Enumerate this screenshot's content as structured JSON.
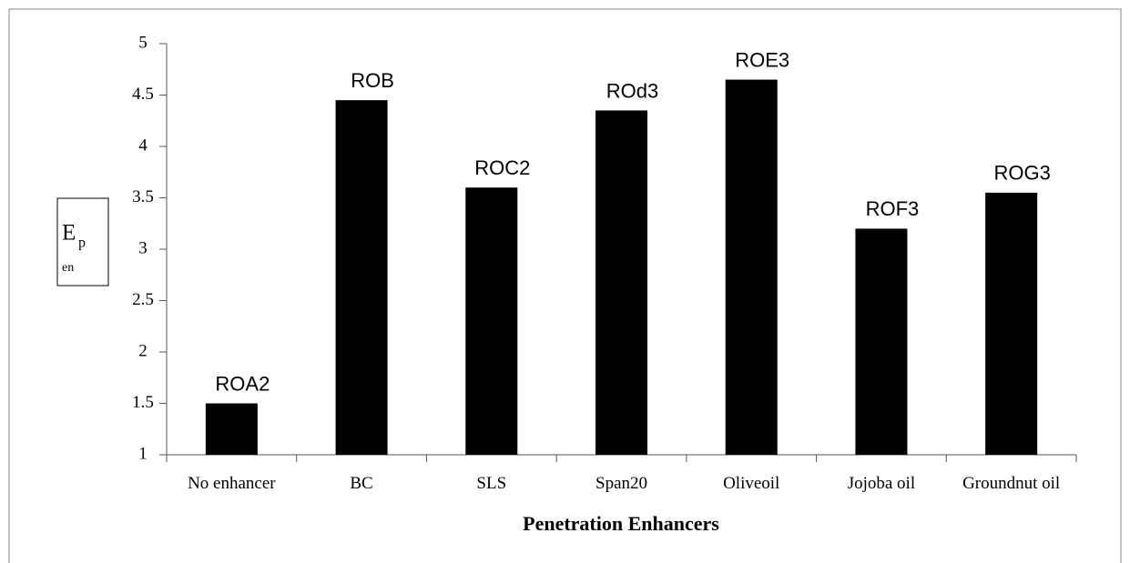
{
  "chart_data": {
    "type": "bar",
    "categories": [
      "No enhancer",
      "BC",
      "SLS",
      "Span20",
      "Oliveoil",
      "Jojoba oil",
      "Groundnut oil"
    ],
    "values": [
      1.5,
      4.45,
      3.6,
      4.35,
      4.65,
      3.2,
      3.55
    ],
    "bar_labels": [
      "ROA2",
      "ROB",
      "ROC2",
      "ROd3",
      "ROE3",
      "ROF3",
      "ROG3"
    ],
    "color": "#000000",
    "ylim": [
      1,
      5
    ],
    "yticks": [
      1,
      1.5,
      2,
      2.5,
      3,
      3.5,
      4,
      4.5,
      5
    ],
    "ylabel": "E",
    "ylabel_sub": "p",
    "ylabel_note": "en",
    "xlabel": "Penetration Enhancers"
  }
}
